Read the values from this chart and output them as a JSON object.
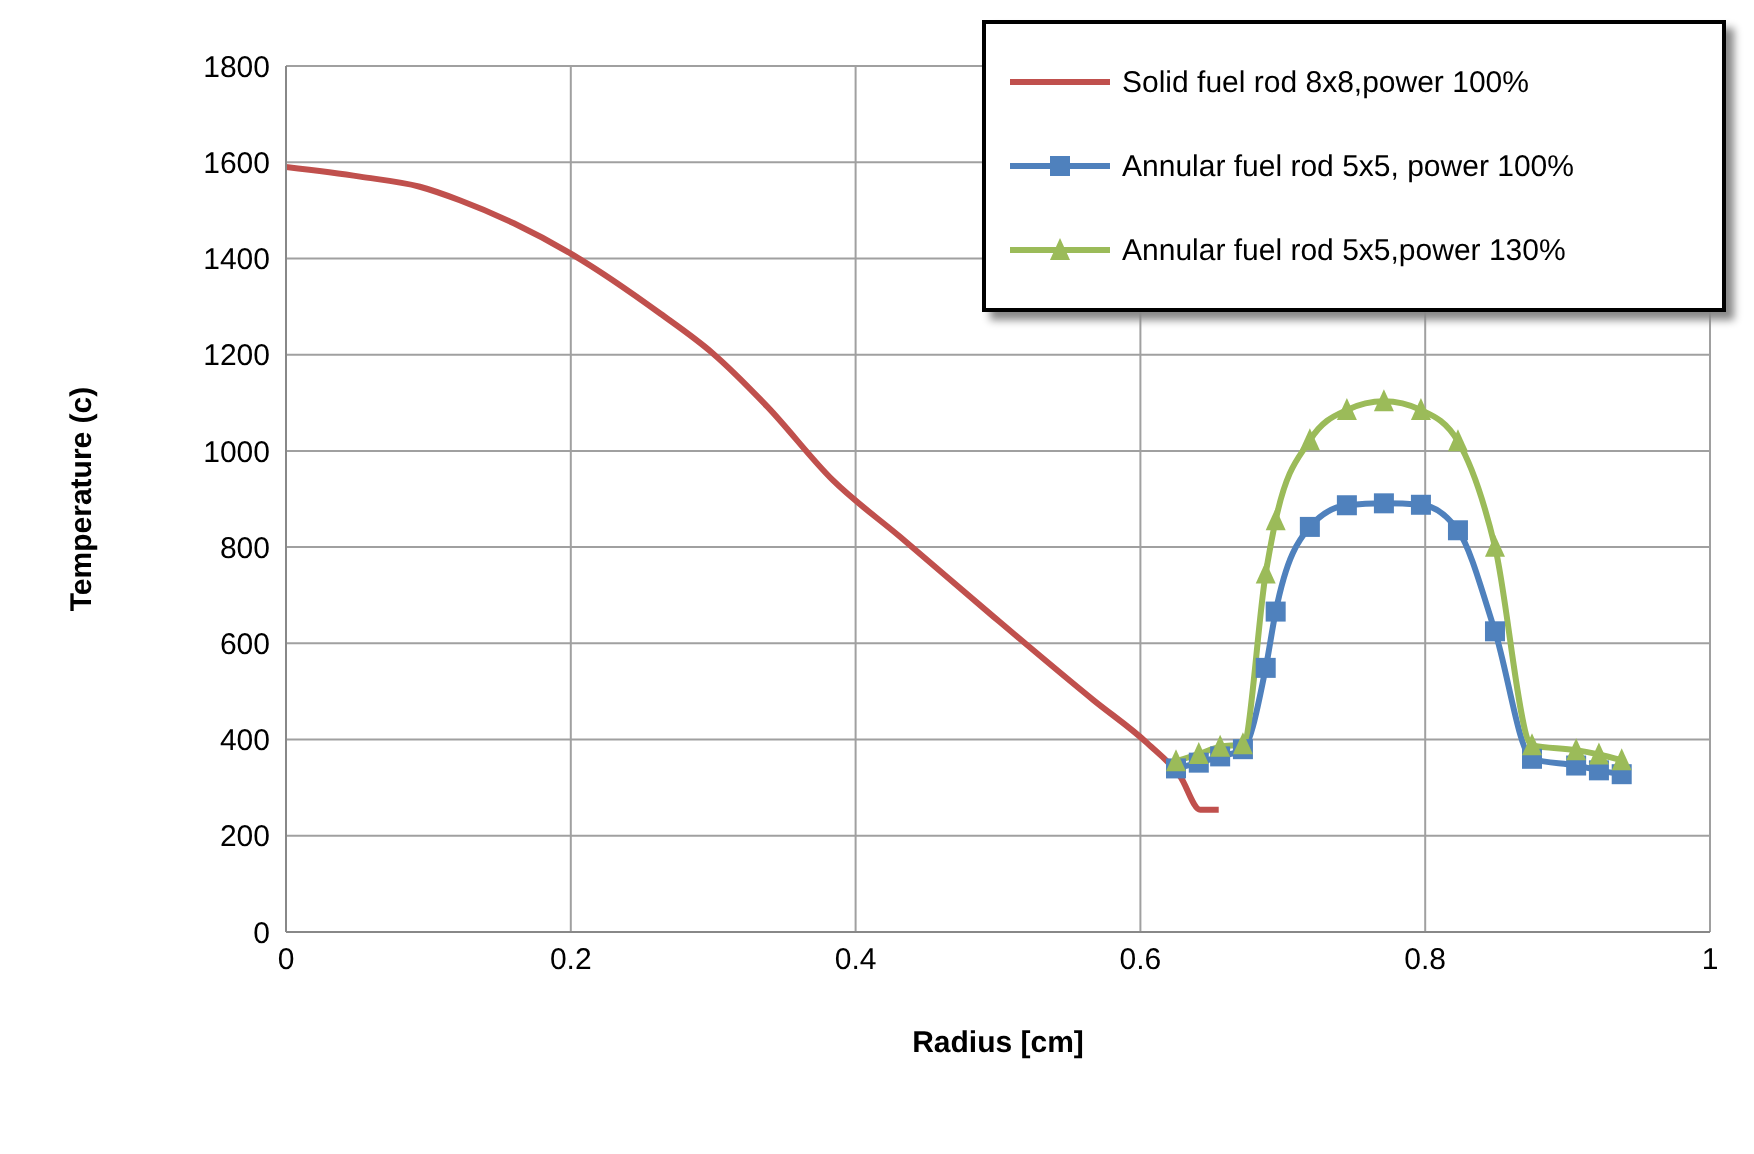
{
  "chart_data": {
    "type": "line",
    "xlabel": "Radius [cm]",
    "ylabel": "Temperature (c)",
    "xlim": [
      0,
      1
    ],
    "xticks": [
      0,
      0.2,
      0.4,
      0.6,
      0.8,
      1
    ],
    "ylim": [
      0,
      1800
    ],
    "yticks": [
      0,
      200,
      400,
      600,
      800,
      1000,
      1200,
      1400,
      1600,
      1800
    ],
    "grid": true,
    "legend": "top right",
    "line_style": "solid",
    "series": [
      {
        "name": "Solid fuel rod 8x8,power 100%",
        "color": "#c0504d",
        "marker": "none",
        "x": [
          0,
          0.052,
          0.094,
          0.122,
          0.16,
          0.2,
          0.263,
          0.3,
          0.338,
          0.384,
          0.431,
          0.497,
          0.567,
          0.605,
          0.628,
          0.642,
          0.655
        ],
        "values": [
          1590,
          1570,
          1549,
          1521,
          1473,
          1410,
          1285,
          1202,
          1092,
          939,
          822,
          655,
          482,
          392,
          323,
          254,
          254
        ]
      },
      {
        "name": "Annular fuel rod 5x5, power 100%",
        "color": "#4f81bd",
        "marker": "square",
        "x": [
          0.625,
          0.641,
          0.656,
          0.672,
          0.688,
          0.695,
          0.719,
          0.745,
          0.771,
          0.797,
          0.823,
          0.849,
          0.875,
          0.906,
          0.922,
          0.938
        ],
        "values": [
          340,
          352,
          365,
          380,
          549,
          666,
          842,
          887,
          891,
          888,
          835,
          625,
          360,
          346,
          336,
          328
        ]
      },
      {
        "name": "Annular fuel rod 5x5,power 130%",
        "color": "#9bbb59",
        "marker": "triangle",
        "x": [
          0.625,
          0.641,
          0.656,
          0.672,
          0.688,
          0.695,
          0.719,
          0.745,
          0.771,
          0.797,
          0.823,
          0.849,
          0.875,
          0.906,
          0.922,
          0.938
        ],
        "values": [
          355,
          370,
          385,
          390,
          745,
          856,
          1022,
          1085,
          1103,
          1085,
          1020,
          801,
          388,
          378,
          369,
          357
        ]
      }
    ]
  }
}
